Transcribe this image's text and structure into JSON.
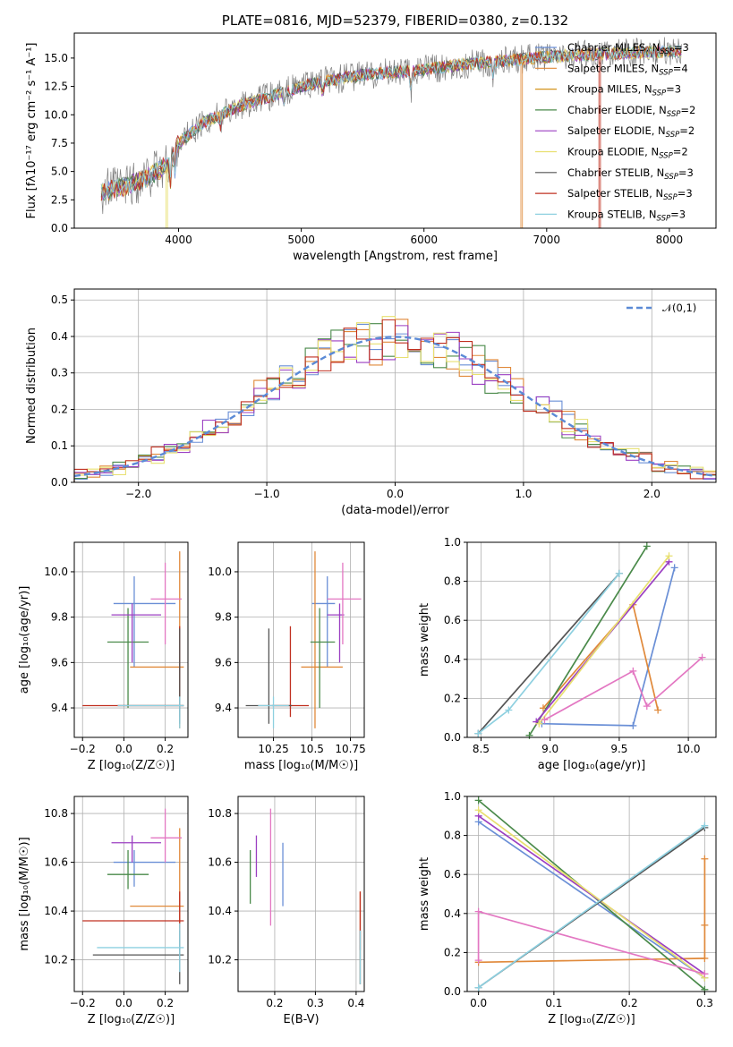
{
  "chart_data": [
    {
      "id": "spectrum",
      "type": "line",
      "title": "PLATE=0816, MJD=52379, FIBERID=0380, z=0.132",
      "xlabel": "wavelength [Angstrom, rest frame]",
      "ylabel": "Flux [fλ10⁻¹⁷ erg cm⁻² s⁻¹ A⁻¹]",
      "xlim": [
        3150,
        8380
      ],
      "ylim": [
        0,
        17.2
      ],
      "xticks": [
        4000,
        5000,
        6000,
        7000,
        8000
      ],
      "yticks": [
        0.0,
        2.5,
        5.0,
        7.5,
        10.0,
        12.5,
        15.0
      ],
      "grid": false,
      "legend_position": "top-right",
      "data_range_x": [
        3370,
        8100
      ],
      "series": [
        {
          "name": "Chabrier MILES, N_SSP=3",
          "color": "#6a8fd6"
        },
        {
          "name": "Salpeter MILES, N_SSP=4",
          "color": "#e0893a"
        },
        {
          "name": "Kroupa MILES, N_SSP=3",
          "color": "#d4941c"
        },
        {
          "name": "Chabrier ELODIE, N_SSP=2",
          "color": "#4a8a4a"
        },
        {
          "name": "Salpeter ELODIE, N_SSP=2",
          "color": "#9b3fc2"
        },
        {
          "name": "Kroupa ELODIE, N_SSP=2",
          "color": "#e8e070"
        },
        {
          "name": "Chabrier STELIB, N_SSP=3",
          "color": "#555555"
        },
        {
          "name": "Salpeter STELIB, N_SSP=3",
          "color": "#c03020"
        },
        {
          "name": "Kroupa STELIB, N_SSP=3",
          "color": "#8ed0e0"
        }
      ],
      "data_series": {
        "name": "data",
        "color": "#808080"
      },
      "continuum": {
        "x": [
          3370,
          3500,
          3700,
          3900,
          4000,
          4200,
          4500,
          4800,
          5000,
          5200,
          5500,
          5800,
          6000,
          6300,
          6600,
          6800,
          7000,
          7300,
          7500,
          7800,
          8100
        ],
        "y": [
          3.2,
          3.5,
          4.2,
          5.5,
          7.5,
          9.3,
          10.8,
          11.8,
          12.5,
          13.0,
          13.5,
          13.8,
          14.0,
          14.4,
          14.7,
          14.9,
          15.1,
          15.3,
          15.4,
          15.5,
          15.6
        ]
      },
      "features": [
        {
          "x": 3933,
          "depth": 2.0
        },
        {
          "x": 3968,
          "depth": 1.8
        },
        {
          "x": 4340,
          "depth": 1.0
        },
        {
          "x": 4861,
          "depth": 1.2
        },
        {
          "x": 5175,
          "depth": 1.2
        },
        {
          "x": 5893,
          "depth": 2.2
        },
        {
          "x": 6563,
          "depth": 1.2
        }
      ],
      "drops": [
        {
          "x": 3900,
          "series": "Kroupa ELODIE, N_SSP=2"
        },
        {
          "x": 6800,
          "series": "Salpeter MILES, N_SSP=4"
        },
        {
          "x": 7430,
          "series": "Salpeter STELIB, N_SSP=3"
        }
      ]
    },
    {
      "id": "residuals",
      "type": "step",
      "xlabel": "(data-model)/error",
      "ylabel": "Normed distribution",
      "xlim": [
        -2.5,
        2.5
      ],
      "ylim": [
        0,
        0.53
      ],
      "xticks": [
        -2,
        -1,
        0,
        1,
        2
      ],
      "yticks": [
        0.0,
        0.1,
        0.2,
        0.3,
        0.4,
        0.5
      ],
      "grid": true,
      "legend_position": "top-right",
      "bin_edges": [
        -2.5,
        2.5
      ],
      "bin_width": 0.1,
      "reference": {
        "name": "𝒩(0,1)",
        "color": "#5b8ad6",
        "style": "dashed",
        "mu": 0,
        "sigma": 1
      },
      "series": [
        {
          "color": "#6a8fd6",
          "seed": 1
        },
        {
          "color": "#e0893a",
          "seed": 2
        },
        {
          "color": "#4a8a4a",
          "seed": 3
        },
        {
          "color": "#9b3fc2",
          "seed": 4
        },
        {
          "color": "#e8e070",
          "seed": 5
        },
        {
          "color": "#c03020",
          "seed": 6
        }
      ]
    },
    {
      "id": "age-vs-Z",
      "type": "errorbar",
      "xlabel": "Z [log₁₀(Z/Z☉)]",
      "ylabel": "age  [log₁₀(age/yr)]",
      "xlim": [
        -0.24,
        0.31
      ],
      "ylim": [
        9.27,
        10.13
      ],
      "xticks": [
        -0.2,
        0.0,
        0.2
      ],
      "yticks": [
        9.4,
        9.6,
        9.8,
        10.0
      ],
      "grid": true,
      "points": [
        {
          "color": "#6a8fd6",
          "x": 0.05,
          "xerr": [
            0.1,
            0.2
          ],
          "y": 9.86,
          "yerr": [
            0.28,
            0.12
          ]
        },
        {
          "color": "#e0893a",
          "x": 0.27,
          "xerr": [
            0.24,
            0.02
          ],
          "y": 9.58,
          "yerr": [
            0.27,
            0.51
          ]
        },
        {
          "color": "#4a8a4a",
          "x": 0.02,
          "xerr": [
            0.1,
            0.1
          ],
          "y": 9.69,
          "yerr": [
            0.29,
            0.15
          ]
        },
        {
          "color": "#9b3fc2",
          "x": 0.04,
          "xerr": [
            0.1,
            0.14
          ],
          "y": 9.81,
          "yerr": [
            0.21,
            0.05
          ]
        },
        {
          "color": "#e377c2",
          "x": 0.2,
          "xerr": [
            0.07,
            0.08
          ],
          "y": 9.88,
          "yerr": [
            0.2,
            0.16
          ]
        },
        {
          "color": "#c03020",
          "x": 0.27,
          "xerr": [
            0.47,
            0.02
          ],
          "y": 9.41,
          "yerr": [
            0.05,
            0.35
          ]
        },
        {
          "color": "#555555",
          "x": 0.27,
          "xerr": [
            0.3,
            0.02
          ],
          "y": 9.41,
          "yerr": [
            0.08,
            0.34
          ]
        },
        {
          "color": "#8ed0e0",
          "x": 0.27,
          "xerr": [
            0.3,
            0.02
          ],
          "y": 9.41,
          "yerr": [
            0.1,
            0.04
          ]
        }
      ]
    },
    {
      "id": "age-vs-mass",
      "type": "errorbar",
      "xlabel": "mass [log₁₀(M/M☉)]",
      "ylabel": "",
      "xlim": [
        10.02,
        10.84
      ],
      "ylim": [
        9.27,
        10.13
      ],
      "xticks": [
        10.25,
        10.5,
        10.75
      ],
      "yticks": [
        9.4,
        9.6,
        9.8,
        10.0
      ],
      "grid": true,
      "points": [
        {
          "color": "#6a8fd6",
          "x": 10.6,
          "xerr": [
            0.1,
            0.05
          ],
          "y": 9.86,
          "yerr": [
            0.28,
            0.12
          ]
        },
        {
          "color": "#e0893a",
          "x": 10.52,
          "xerr": [
            0.09,
            0.18
          ],
          "y": 9.58,
          "yerr": [
            0.27,
            0.51
          ]
        },
        {
          "color": "#4a8a4a",
          "x": 10.55,
          "xerr": [
            0.06,
            0.1
          ],
          "y": 9.69,
          "yerr": [
            0.29,
            0.15
          ]
        },
        {
          "color": "#9b3fc2",
          "x": 10.68,
          "xerr": [
            0.08,
            0.03
          ],
          "y": 9.81,
          "yerr": [
            0.21,
            0.05
          ]
        },
        {
          "color": "#e377c2",
          "x": 10.7,
          "xerr": [
            0.1,
            0.12
          ],
          "y": 9.88,
          "yerr": [
            0.2,
            0.16
          ]
        },
        {
          "color": "#c03020",
          "x": 10.36,
          "xerr": [
            0.12,
            0.12
          ],
          "y": 9.41,
          "yerr": [
            0.05,
            0.35
          ]
        },
        {
          "color": "#555555",
          "x": 10.22,
          "xerr": [
            0.15,
            0.15
          ],
          "y": 9.41,
          "yerr": [
            0.08,
            0.34
          ]
        },
        {
          "color": "#8ed0e0",
          "x": 10.25,
          "xerr": [
            0.1,
            0.1
          ],
          "y": 9.41,
          "yerr": [
            0.1,
            0.04
          ]
        }
      ]
    },
    {
      "id": "weight-vs-age",
      "type": "line",
      "xlabel": "age  [log₁₀(age/yr)]",
      "ylabel": "mass weight",
      "xlim": [
        8.4,
        10.2
      ],
      "ylim": [
        0,
        1.0
      ],
      "xticks": [
        8.5,
        9.0,
        9.5,
        10.0
      ],
      "yticks": [
        0.0,
        0.2,
        0.4,
        0.6,
        0.8,
        1.0
      ],
      "grid": true,
      "series": [
        {
          "color": "#6a8fd6",
          "x": [
            8.94,
            9.6,
            9.9
          ],
          "y": [
            0.07,
            0.06,
            0.87
          ]
        },
        {
          "color": "#e0893a",
          "x": [
            8.95,
            9.6,
            9.78
          ],
          "y": [
            0.15,
            0.68,
            0.14
          ]
        },
        {
          "color": "#4a8a4a",
          "x": [
            8.85,
            9.7
          ],
          "y": [
            0.01,
            0.98
          ]
        },
        {
          "color": "#9b3fc2",
          "x": [
            8.9,
            9.86
          ],
          "y": [
            0.08,
            0.9
          ]
        },
        {
          "color": "#e8e070",
          "x": [
            8.92,
            9.86
          ],
          "y": [
            0.07,
            0.93
          ]
        },
        {
          "color": "#e377c2",
          "x": [
            8.96,
            9.6,
            9.7,
            10.1
          ],
          "y": [
            0.09,
            0.34,
            0.16,
            0.41
          ]
        },
        {
          "color": "#555555",
          "x": [
            8.48,
            9.5
          ],
          "y": [
            0.02,
            0.84
          ]
        },
        {
          "color": "#8ed0e0",
          "x": [
            8.48,
            8.7,
            9.5
          ],
          "y": [
            0.02,
            0.14,
            0.84
          ]
        }
      ]
    },
    {
      "id": "mass-vs-Z",
      "type": "errorbar",
      "xlabel": "Z [log₁₀(Z/Z☉)]",
      "ylabel": "mass [log₁₀(M/M☉)]",
      "xlim": [
        -0.24,
        0.31
      ],
      "ylim": [
        10.07,
        10.87
      ],
      "xticks": [
        -0.2,
        0.0,
        0.2
      ],
      "yticks": [
        10.2,
        10.4,
        10.6,
        10.8
      ],
      "grid": true,
      "points": [
        {
          "color": "#6a8fd6",
          "x": 0.05,
          "xerr": [
            0.1,
            0.2
          ],
          "y": 10.6,
          "yerr": [
            0.1,
            0.05
          ]
        },
        {
          "color": "#e0893a",
          "x": 0.27,
          "xerr": [
            0.24,
            0.02
          ],
          "y": 10.42,
          "yerr": [
            0.09,
            0.32
          ]
        },
        {
          "color": "#4a8a4a",
          "x": 0.02,
          "xerr": [
            0.1,
            0.1
          ],
          "y": 10.55,
          "yerr": [
            0.06,
            0.1
          ]
        },
        {
          "color": "#9b3fc2",
          "x": 0.04,
          "xerr": [
            0.1,
            0.14
          ],
          "y": 10.68,
          "yerr": [
            0.08,
            0.03
          ]
        },
        {
          "color": "#e377c2",
          "x": 0.2,
          "xerr": [
            0.07,
            0.08
          ],
          "y": 10.7,
          "yerr": [
            0.1,
            0.12
          ]
        },
        {
          "color": "#c03020",
          "x": 0.27,
          "xerr": [
            0.47,
            0.02
          ],
          "y": 10.36,
          "yerr": [
            0.12,
            0.12
          ]
        },
        {
          "color": "#555555",
          "x": 0.27,
          "xerr": [
            0.42,
            0.02
          ],
          "y": 10.22,
          "yerr": [
            0.12,
            0.1
          ]
        },
        {
          "color": "#8ed0e0",
          "x": 0.27,
          "xerr": [
            0.4,
            0.02
          ],
          "y": 10.25,
          "yerr": [
            0.1,
            0.1
          ]
        }
      ]
    },
    {
      "id": "mass-vs-EBV",
      "type": "errorbar",
      "xlabel": "E(B-V)",
      "ylabel": "",
      "xlim": [
        0.11,
        0.42
      ],
      "ylim": [
        10.07,
        10.87
      ],
      "xticks": [
        0.2,
        0.3,
        0.4
      ],
      "yticks": [
        10.2,
        10.4,
        10.6,
        10.8
      ],
      "grid": true,
      "points": [
        {
          "color": "#6a8fd6",
          "x": 0.22,
          "xerr": [
            0,
            0
          ],
          "y": 10.55,
          "yerr": [
            0.13,
            0.13
          ]
        },
        {
          "color": "#e0893a",
          "x": 0.41,
          "xerr": [
            0,
            0
          ],
          "y": 10.2,
          "yerr": [
            0.1,
            0.28
          ]
        },
        {
          "color": "#4a8a4a",
          "x": 0.14,
          "xerr": [
            0,
            0
          ],
          "y": 10.55,
          "yerr": [
            0.12,
            0.1
          ]
        },
        {
          "color": "#9b3fc2",
          "x": 0.155,
          "xerr": [
            0,
            0
          ],
          "y": 10.62,
          "yerr": [
            0.08,
            0.09
          ]
        },
        {
          "color": "#e377c2",
          "x": 0.19,
          "xerr": [
            0,
            0
          ],
          "y": 10.6,
          "yerr": [
            0.26,
            0.22
          ]
        },
        {
          "color": "#c03020",
          "x": 0.41,
          "xerr": [
            0,
            0
          ],
          "y": 10.36,
          "yerr": [
            0.12,
            0.12
          ]
        },
        {
          "color": "#555555",
          "x": 0.41,
          "xerr": [
            0,
            0
          ],
          "y": 10.22,
          "yerr": [
            0.12,
            0.1
          ]
        },
        {
          "color": "#8ed0e0",
          "x": 0.41,
          "xerr": [
            0,
            0
          ],
          "y": 10.2,
          "yerr": [
            0.1,
            0.12
          ]
        }
      ]
    },
    {
      "id": "weight-vs-Z",
      "type": "line",
      "xlabel": "Z [log₁₀(Z/Z☉)]",
      "ylabel": "mass weight",
      "xlim": [
        -0.015,
        0.315
      ],
      "ylim": [
        0,
        1.0
      ],
      "xticks": [
        0.0,
        0.1,
        0.2,
        0.3
      ],
      "yticks": [
        0.0,
        0.2,
        0.4,
        0.6,
        0.8,
        1.0
      ],
      "grid": true,
      "series": [
        {
          "color": "#6a8fd6",
          "x": [
            0.0,
            0.3
          ],
          "y": [
            0.87,
            0.07
          ]
        },
        {
          "color": "#e0893a",
          "x": [
            0.0,
            0.3,
            0.3,
            0.3
          ],
          "y": [
            0.15,
            0.17,
            0.34,
            0.68
          ]
        },
        {
          "color": "#4a8a4a",
          "x": [
            0.0,
            0.3
          ],
          "y": [
            0.98,
            0.01
          ]
        },
        {
          "color": "#9b3fc2",
          "x": [
            0.0,
            0.3
          ],
          "y": [
            0.9,
            0.09
          ]
        },
        {
          "color": "#e8e070",
          "x": [
            0.0,
            0.3
          ],
          "y": [
            0.93,
            0.07
          ]
        },
        {
          "color": "#e377c2",
          "x": [
            0.0,
            0.0,
            0.3
          ],
          "y": [
            0.16,
            0.41,
            0.09
          ]
        },
        {
          "color": "#555555",
          "x": [
            0.0,
            0.3
          ],
          "y": [
            0.02,
            0.84
          ]
        },
        {
          "color": "#8ed0e0",
          "x": [
            0.0,
            0.3
          ],
          "y": [
            0.02,
            0.85
          ]
        }
      ]
    }
  ]
}
